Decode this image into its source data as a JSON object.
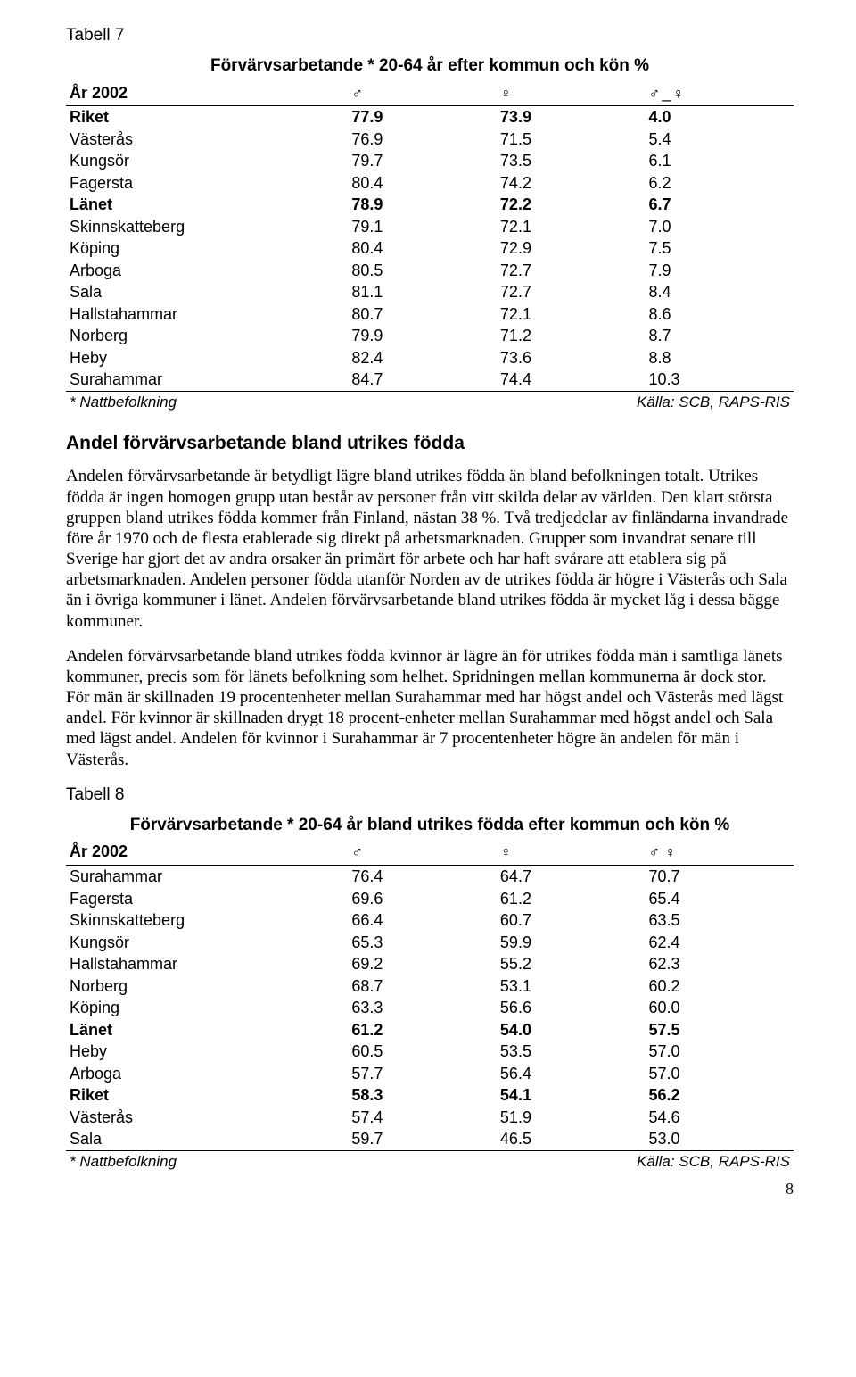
{
  "table7": {
    "label": "Tabell 7",
    "title": "Förvärvsarbetande * 20-64 år efter kommun och kön %",
    "year": "År 2002",
    "icons": {
      "male": "♂",
      "female": "♀",
      "dash": "_"
    },
    "rows": [
      {
        "name": "Riket",
        "c1": "77.9",
        "c2": "73.9",
        "c3": "4.0",
        "bold": true
      },
      {
        "name": "Västerås",
        "c1": "76.9",
        "c2": "71.5",
        "c3": "5.4",
        "bold": false
      },
      {
        "name": "Kungsör",
        "c1": "79.7",
        "c2": "73.5",
        "c3": "6.1",
        "bold": false
      },
      {
        "name": "Fagersta",
        "c1": "80.4",
        "c2": "74.2",
        "c3": "6.2",
        "bold": false
      },
      {
        "name": "Länet",
        "c1": "78.9",
        "c2": "72.2",
        "c3": "6.7",
        "bold": true
      },
      {
        "name": "Skinnskatteberg",
        "c1": "79.1",
        "c2": "72.1",
        "c3": "7.0",
        "bold": false
      },
      {
        "name": "Köping",
        "c1": "80.4",
        "c2": "72.9",
        "c3": "7.5",
        "bold": false
      },
      {
        "name": "Arboga",
        "c1": "80.5",
        "c2": "72.7",
        "c3": "7.9",
        "bold": false
      },
      {
        "name": "Sala",
        "c1": "81.1",
        "c2": "72.7",
        "c3": "8.4",
        "bold": false
      },
      {
        "name": "Hallstahammar",
        "c1": "80.7",
        "c2": "72.1",
        "c3": "8.6",
        "bold": false
      },
      {
        "name": "Norberg",
        "c1": "79.9",
        "c2": "71.2",
        "c3": "8.7",
        "bold": false
      },
      {
        "name": "Heby",
        "c1": "82.4",
        "c2": "73.6",
        "c3": "8.8",
        "bold": false
      },
      {
        "name": "Surahammar",
        "c1": "84.7",
        "c2": "74.4",
        "c3": "10.3",
        "bold": false
      }
    ],
    "footnote_left": "* Nattbefolkning",
    "footnote_right": "Källa: SCB, RAPS-RIS"
  },
  "heading": "Andel förvärvsarbetande bland utrikes födda",
  "para1": "Andelen förvärvsarbetande är betydligt lägre bland utrikes födda än bland befolkningen totalt. Utrikes födda är ingen homogen grupp utan består av personer från vitt skilda delar av världen. Den klart största gruppen bland utrikes födda kommer från Finland, nästan 38 %. Två tredjedelar av finländarna invandrade före år 1970 och de flesta etablerade sig direkt på arbetsmarknaden. Grupper som invandrat senare till Sverige har gjort det av andra orsaker än primärt för arbete och har haft svårare att etablera sig på arbetsmarknaden. Andelen personer födda utanför Norden av de utrikes födda är högre i Västerås och Sala än i övriga kommuner i länet. Andelen förvärvsarbetande bland utrikes födda är mycket låg i dessa bägge kommuner.",
  "para2": "Andelen förvärvsarbetande bland utrikes födda kvinnor är lägre än för utrikes födda män i samtliga länets kommuner, precis som för länets befolkning som helhet. Spridningen mellan kommunerna är dock stor. För män är skillnaden 19 procentenheter mellan Surahammar med har högst andel och Västerås med lägst andel. För kvinnor är skillnaden drygt 18 procent-enheter mellan Surahammar med högst andel och Sala med lägst andel. Andelen för kvinnor i Surahammar är 7 procentenheter högre än andelen för män i Västerås.",
  "table8": {
    "label": "Tabell 8",
    "title": "Förvärvsarbetande * 20-64 år bland utrikes födda efter kommun och kön %",
    "year": "År 2002",
    "icons": {
      "male": "♂",
      "female": "♀"
    },
    "rows": [
      {
        "name": "Surahammar",
        "c1": "76.4",
        "c2": "64.7",
        "c3": "70.7",
        "bold": false
      },
      {
        "name": "Fagersta",
        "c1": "69.6",
        "c2": "61.2",
        "c3": "65.4",
        "bold": false
      },
      {
        "name": "Skinnskatteberg",
        "c1": "66.4",
        "c2": "60.7",
        "c3": "63.5",
        "bold": false
      },
      {
        "name": "Kungsör",
        "c1": "65.3",
        "c2": "59.9",
        "c3": "62.4",
        "bold": false
      },
      {
        "name": "Hallstahammar",
        "c1": "69.2",
        "c2": "55.2",
        "c3": "62.3",
        "bold": false
      },
      {
        "name": "Norberg",
        "c1": "68.7",
        "c2": "53.1",
        "c3": "60.2",
        "bold": false
      },
      {
        "name": "Köping",
        "c1": "63.3",
        "c2": "56.6",
        "c3": "60.0",
        "bold": false
      },
      {
        "name": "Länet",
        "c1": "61.2",
        "c2": "54.0",
        "c3": "57.5",
        "bold": true
      },
      {
        "name": "Heby",
        "c1": "60.5",
        "c2": "53.5",
        "c3": "57.0",
        "bold": false
      },
      {
        "name": "Arboga",
        "c1": "57.7",
        "c2": "56.4",
        "c3": "57.0",
        "bold": false
      },
      {
        "name": "Riket",
        "c1": "58.3",
        "c2": "54.1",
        "c3": "56.2",
        "bold": true
      },
      {
        "name": "Västerås",
        "c1": "57.4",
        "c2": "51.9",
        "c3": "54.6",
        "bold": false
      },
      {
        "name": "Sala",
        "c1": "59.7",
        "c2": "46.5",
        "c3": "53.0",
        "bold": false
      }
    ],
    "footnote_left": "* Nattbefolkning",
    "footnote_right": "Källa: SCB, RAPS-RIS"
  },
  "page_number": "8"
}
